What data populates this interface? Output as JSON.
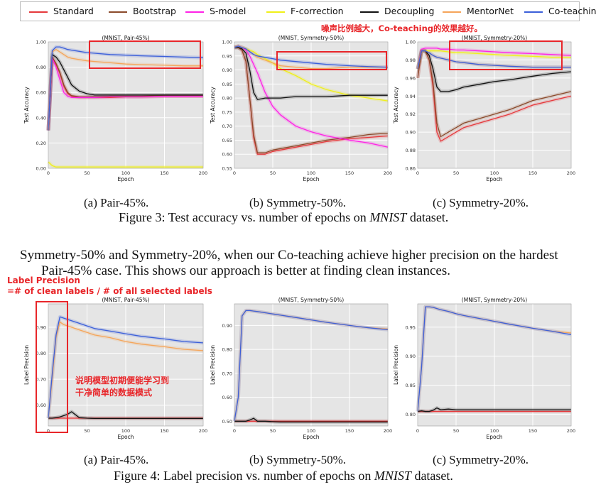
{
  "legend": {
    "entries": [
      {
        "name": "Standard",
        "color": "#e5383b"
      },
      {
        "name": "Bootstrap",
        "color": "#8b4a2b"
      },
      {
        "name": "S-model",
        "color": "#ff22e6"
      },
      {
        "name": "F-correction",
        "color": "#f0f018"
      },
      {
        "name": "Decoupling",
        "color": "#111111"
      },
      {
        "name": "MentorNet",
        "color": "#f5a55a"
      },
      {
        "name": "Co-teaching",
        "color": "#3b5fd9"
      }
    ]
  },
  "annotations": {
    "noise_note": "噪声比例越大，Co-teaching的效果越好。",
    "label_precision_title": "Label Precision",
    "label_precision_formula": "=# of clean labels / # of all selected labels",
    "early_note_line1": "说明模型初期便能学习到",
    "early_note_line2": "干净简单的数据模式"
  },
  "figure3": {
    "subcaptions": [
      "(a) Pair-45%.",
      "(b) Symmetry-50%.",
      "(c) Symmetry-20%."
    ],
    "caption_prefix": "Figure 3: Test accuracy vs. number of epochs on ",
    "caption_dataset": "MNIST",
    "caption_suffix": " dataset."
  },
  "paragraph": {
    "line1": "Symmetry-50% and Symmetry-20%, when our Co-teaching achieve higher precision on the hardest",
    "line2": "Pair-45% case. This shows our approach is better at finding clean instances."
  },
  "figure4": {
    "subcaptions": [
      "(a) Pair-45%.",
      "(b) Symmetry-50%.",
      "(c) Symmetry-20%."
    ],
    "caption_prefix": "Figure 4: Label precision vs. number of epochs on ",
    "caption_dataset": "MNIST",
    "caption_suffix": " dataset."
  },
  "chart_data": [
    {
      "type": "line",
      "title": "(MNIST, Pair-45%)",
      "xlabel": "Epoch",
      "ylabel": "Test Accuracy",
      "xlim": [
        0,
        200
      ],
      "ylim": [
        0.0,
        1.0
      ],
      "xticks": [
        "0",
        "50",
        "100",
        "150",
        "200"
      ],
      "yticks": [
        "0.00",
        "0.20",
        "0.40",
        "0.60",
        "0.80",
        "1.00"
      ],
      "x": [
        0,
        5,
        10,
        15,
        20,
        25,
        30,
        40,
        50,
        60,
        80,
        100,
        120,
        150,
        175,
        200
      ],
      "series": [
        {
          "name": "Standard",
          "values": [
            0.3,
            0.88,
            0.82,
            0.75,
            0.65,
            0.59,
            0.57,
            0.56,
            0.56,
            0.56,
            0.56,
            0.565,
            0.565,
            0.57,
            0.57,
            0.57
          ]
        },
        {
          "name": "Bootstrap",
          "values": [
            0.3,
            0.88,
            0.83,
            0.76,
            0.66,
            0.6,
            0.575,
            0.565,
            0.565,
            0.565,
            0.57,
            0.57,
            0.57,
            0.575,
            0.575,
            0.575
          ]
        },
        {
          "name": "S-model",
          "values": [
            0.3,
            0.87,
            0.8,
            0.7,
            0.6,
            0.57,
            0.56,
            0.56,
            0.56,
            0.56,
            0.565,
            0.565,
            0.565,
            0.57,
            0.57,
            0.57
          ]
        },
        {
          "name": "F-correction",
          "values": [
            0.05,
            0.02,
            0.01,
            0.01,
            0.01,
            0.01,
            0.01,
            0.01,
            0.01,
            0.01,
            0.01,
            0.01,
            0.01,
            0.01,
            0.01,
            0.01
          ]
        },
        {
          "name": "Decoupling",
          "values": [
            0.3,
            0.9,
            0.88,
            0.84,
            0.78,
            0.72,
            0.66,
            0.61,
            0.59,
            0.58,
            0.58,
            0.58,
            0.58,
            0.58,
            0.58,
            0.58
          ]
        },
        {
          "name": "MentorNet",
          "values": [
            0.3,
            0.92,
            0.94,
            0.92,
            0.9,
            0.88,
            0.87,
            0.86,
            0.85,
            0.845,
            0.835,
            0.825,
            0.82,
            0.815,
            0.81,
            0.81
          ]
        },
        {
          "name": "Co-teaching",
          "values": [
            0.3,
            0.93,
            0.96,
            0.96,
            0.95,
            0.94,
            0.935,
            0.925,
            0.915,
            0.91,
            0.9,
            0.895,
            0.89,
            0.885,
            0.88,
            0.875
          ]
        }
      ]
    },
    {
      "type": "line",
      "title": "(MNIST, Symmetry-50%)",
      "xlabel": "Epoch",
      "ylabel": "Test Accuracy",
      "xlim": [
        0,
        200
      ],
      "ylim": [
        0.55,
        1.0
      ],
      "xticks": [
        "0",
        "50",
        "100",
        "150",
        "200"
      ],
      "yticks": [
        "0.55",
        "0.60",
        "0.65",
        "0.70",
        "0.75",
        "0.80",
        "0.85",
        "0.90",
        "0.95",
        "1.00"
      ],
      "x": [
        0,
        5,
        10,
        15,
        20,
        25,
        30,
        40,
        50,
        60,
        80,
        100,
        120,
        150,
        175,
        200
      ],
      "series": [
        {
          "name": "Standard",
          "values": [
            0.98,
            0.98,
            0.97,
            0.93,
            0.8,
            0.66,
            0.6,
            0.6,
            0.61,
            0.615,
            0.625,
            0.635,
            0.645,
            0.655,
            0.66,
            0.665
          ]
        },
        {
          "name": "Bootstrap",
          "values": [
            0.98,
            0.98,
            0.97,
            0.93,
            0.8,
            0.67,
            0.605,
            0.605,
            0.615,
            0.62,
            0.63,
            0.64,
            0.65,
            0.66,
            0.67,
            0.675
          ]
        },
        {
          "name": "S-model",
          "values": [
            0.98,
            0.985,
            0.98,
            0.97,
            0.95,
            0.92,
            0.89,
            0.82,
            0.77,
            0.74,
            0.7,
            0.68,
            0.665,
            0.65,
            0.64,
            0.625
          ]
        },
        {
          "name": "F-correction",
          "values": [
            0.98,
            0.985,
            0.98,
            0.975,
            0.97,
            0.965,
            0.955,
            0.94,
            0.925,
            0.905,
            0.88,
            0.85,
            0.83,
            0.81,
            0.8,
            0.79
          ]
        },
        {
          "name": "Decoupling",
          "values": [
            0.98,
            0.98,
            0.975,
            0.96,
            0.9,
            0.82,
            0.795,
            0.8,
            0.8,
            0.8,
            0.805,
            0.805,
            0.805,
            0.81,
            0.81,
            0.81
          ]
        },
        {
          "name": "MentorNet",
          "values": [
            0.98,
            0.985,
            0.98,
            0.975,
            0.965,
            0.955,
            0.945,
            0.935,
            0.925,
            0.915,
            0.91,
            0.905,
            0.905,
            0.91,
            0.91,
            0.91
          ]
        },
        {
          "name": "Co-teaching",
          "values": [
            0.98,
            0.985,
            0.98,
            0.975,
            0.965,
            0.955,
            0.95,
            0.945,
            0.94,
            0.935,
            0.93,
            0.925,
            0.92,
            0.915,
            0.912,
            0.91
          ]
        }
      ]
    },
    {
      "type": "line",
      "title": "(MNIST, Symmetry-20%)",
      "xlabel": "Epoch",
      "ylabel": "Test Accuracy",
      "xlim": [
        0,
        200
      ],
      "ylim": [
        0.86,
        1.0
      ],
      "xticks": [
        "0",
        "50",
        "100",
        "150",
        "200"
      ],
      "yticks": [
        "0.86",
        "0.88",
        "0.90",
        "0.92",
        "0.94",
        "0.96",
        "0.98",
        "1.00"
      ],
      "x": [
        0,
        5,
        10,
        15,
        20,
        25,
        30,
        40,
        50,
        60,
        80,
        100,
        120,
        150,
        175,
        200
      ],
      "series": [
        {
          "name": "Standard",
          "values": [
            0.96,
            0.99,
            0.99,
            0.98,
            0.95,
            0.9,
            0.89,
            0.895,
            0.9,
            0.905,
            0.91,
            0.915,
            0.92,
            0.93,
            0.935,
            0.94
          ]
        },
        {
          "name": "Bootstrap",
          "values": [
            0.96,
            0.99,
            0.99,
            0.98,
            0.955,
            0.91,
            0.895,
            0.9,
            0.905,
            0.91,
            0.915,
            0.92,
            0.925,
            0.935,
            0.94,
            0.945
          ]
        },
        {
          "name": "S-model",
          "values": [
            0.97,
            0.992,
            0.993,
            0.993,
            0.993,
            0.993,
            0.992,
            0.992,
            0.991,
            0.991,
            0.99,
            0.989,
            0.988,
            0.987,
            0.986,
            0.985
          ]
        },
        {
          "name": "F-correction",
          "values": [
            0.97,
            0.99,
            0.99,
            0.99,
            0.99,
            0.99,
            0.99,
            0.989,
            0.988,
            0.988,
            0.987,
            0.986,
            0.985,
            0.984,
            0.983,
            0.983
          ]
        },
        {
          "name": "Decoupling",
          "values": [
            0.97,
            0.99,
            0.99,
            0.985,
            0.97,
            0.95,
            0.945,
            0.945,
            0.947,
            0.95,
            0.953,
            0.956,
            0.958,
            0.962,
            0.965,
            0.967
          ]
        },
        {
          "name": "MentorNet",
          "values": [
            0.97,
            0.99,
            0.99,
            0.988,
            0.985,
            0.983,
            0.982,
            0.98,
            0.978,
            0.977,
            0.975,
            0.974,
            0.973,
            0.972,
            0.972,
            0.972
          ]
        },
        {
          "name": "Co-teaching",
          "values": [
            0.97,
            0.99,
            0.99,
            0.988,
            0.985,
            0.983,
            0.982,
            0.98,
            0.978,
            0.977,
            0.975,
            0.974,
            0.973,
            0.972,
            0.972,
            0.972
          ]
        }
      ]
    },
    {
      "type": "line",
      "title": "(MNIST, Pair-45%)",
      "xlabel": "Epoch",
      "ylabel": "Label Precision",
      "xlim": [
        0,
        200
      ],
      "ylim": [
        0.52,
        0.99
      ],
      "xticks": [
        "0",
        "50",
        "100",
        "150",
        "200"
      ],
      "yticks": [
        "0.60",
        "0.70",
        "0.80",
        "0.90"
      ],
      "x": [
        0,
        5,
        10,
        15,
        20,
        25,
        30,
        40,
        50,
        60,
        80,
        100,
        120,
        150,
        175,
        200
      ],
      "series": [
        {
          "name": "Standard",
          "values": [
            0.55,
            0.55,
            0.55,
            0.55,
            0.55,
            0.55,
            0.55,
            0.55,
            0.55,
            0.55,
            0.55,
            0.55,
            0.55,
            0.55,
            0.55,
            0.55
          ]
        },
        {
          "name": "Decoupling",
          "values": [
            0.55,
            0.55,
            0.552,
            0.555,
            0.56,
            0.565,
            0.575,
            0.552,
            0.55,
            0.549,
            0.549,
            0.549,
            0.549,
            0.549,
            0.549,
            0.549
          ]
        },
        {
          "name": "MentorNet",
          "values": [
            0.55,
            0.7,
            0.86,
            0.92,
            0.91,
            0.905,
            0.9,
            0.89,
            0.88,
            0.87,
            0.86,
            0.845,
            0.835,
            0.825,
            0.815,
            0.81
          ]
        },
        {
          "name": "Co-teaching",
          "values": [
            0.55,
            0.72,
            0.87,
            0.94,
            0.935,
            0.93,
            0.925,
            0.915,
            0.905,
            0.895,
            0.885,
            0.875,
            0.865,
            0.855,
            0.845,
            0.84
          ]
        }
      ]
    },
    {
      "type": "line",
      "title": "(MNIST, Symmetry-50%)",
      "xlabel": "Epoch",
      "ylabel": "Label Precision",
      "xlim": [
        0,
        200
      ],
      "ylim": [
        0.48,
        0.99
      ],
      "xticks": [
        "0",
        "50",
        "100",
        "150",
        "200"
      ],
      "yticks": [
        "0.50",
        "0.60",
        "0.70",
        "0.80",
        "0.90"
      ],
      "x": [
        0,
        5,
        10,
        15,
        20,
        25,
        30,
        40,
        50,
        60,
        80,
        100,
        120,
        150,
        175,
        200
      ],
      "series": [
        {
          "name": "Standard",
          "values": [
            0.5,
            0.5,
            0.5,
            0.5,
            0.5,
            0.5,
            0.5,
            0.5,
            0.5,
            0.5,
            0.5,
            0.5,
            0.5,
            0.5,
            0.5,
            0.5
          ]
        },
        {
          "name": "Decoupling",
          "values": [
            0.5,
            0.5,
            0.5,
            0.5,
            0.505,
            0.512,
            0.5,
            0.5,
            0.498,
            0.497,
            0.497,
            0.497,
            0.497,
            0.497,
            0.497,
            0.497
          ]
        },
        {
          "name": "MentorNet",
          "values": [
            0.5,
            0.6,
            0.94,
            0.962,
            0.962,
            0.96,
            0.958,
            0.953,
            0.948,
            0.943,
            0.933,
            0.923,
            0.913,
            0.9,
            0.89,
            0.885
          ]
        },
        {
          "name": "Co-teaching",
          "values": [
            0.5,
            0.6,
            0.94,
            0.962,
            0.962,
            0.96,
            0.958,
            0.953,
            0.948,
            0.943,
            0.933,
            0.923,
            0.913,
            0.9,
            0.89,
            0.882
          ]
        }
      ]
    },
    {
      "type": "line",
      "title": "(MNIST, Symmetry-20%)",
      "xlabel": "Epoch",
      "ylabel": "Label Precision",
      "xlim": [
        0,
        200
      ],
      "ylim": [
        0.78,
        0.99
      ],
      "xticks": [
        "0",
        "50",
        "100",
        "150",
        "200"
      ],
      "yticks": [
        "0.80",
        "0.85",
        "0.90",
        "0.95"
      ],
      "x": [
        0,
        5,
        10,
        15,
        20,
        25,
        30,
        40,
        50,
        60,
        80,
        100,
        120,
        150,
        175,
        200
      ],
      "series": [
        {
          "name": "Standard",
          "values": [
            0.805,
            0.805,
            0.805,
            0.805,
            0.805,
            0.805,
            0.805,
            0.805,
            0.805,
            0.805,
            0.805,
            0.805,
            0.805,
            0.805,
            0.805,
            0.805
          ]
        },
        {
          "name": "Decoupling",
          "values": [
            0.805,
            0.806,
            0.805,
            0.805,
            0.807,
            0.811,
            0.808,
            0.809,
            0.808,
            0.808,
            0.808,
            0.808,
            0.808,
            0.808,
            0.808,
            0.808
          ]
        },
        {
          "name": "MentorNet",
          "values": [
            0.805,
            0.88,
            0.985,
            0.985,
            0.984,
            0.982,
            0.98,
            0.977,
            0.973,
            0.97,
            0.965,
            0.96,
            0.955,
            0.948,
            0.943,
            0.94
          ]
        },
        {
          "name": "Co-teaching",
          "values": [
            0.805,
            0.88,
            0.985,
            0.985,
            0.984,
            0.982,
            0.98,
            0.977,
            0.973,
            0.97,
            0.965,
            0.96,
            0.955,
            0.948,
            0.943,
            0.937
          ]
        }
      ]
    }
  ]
}
